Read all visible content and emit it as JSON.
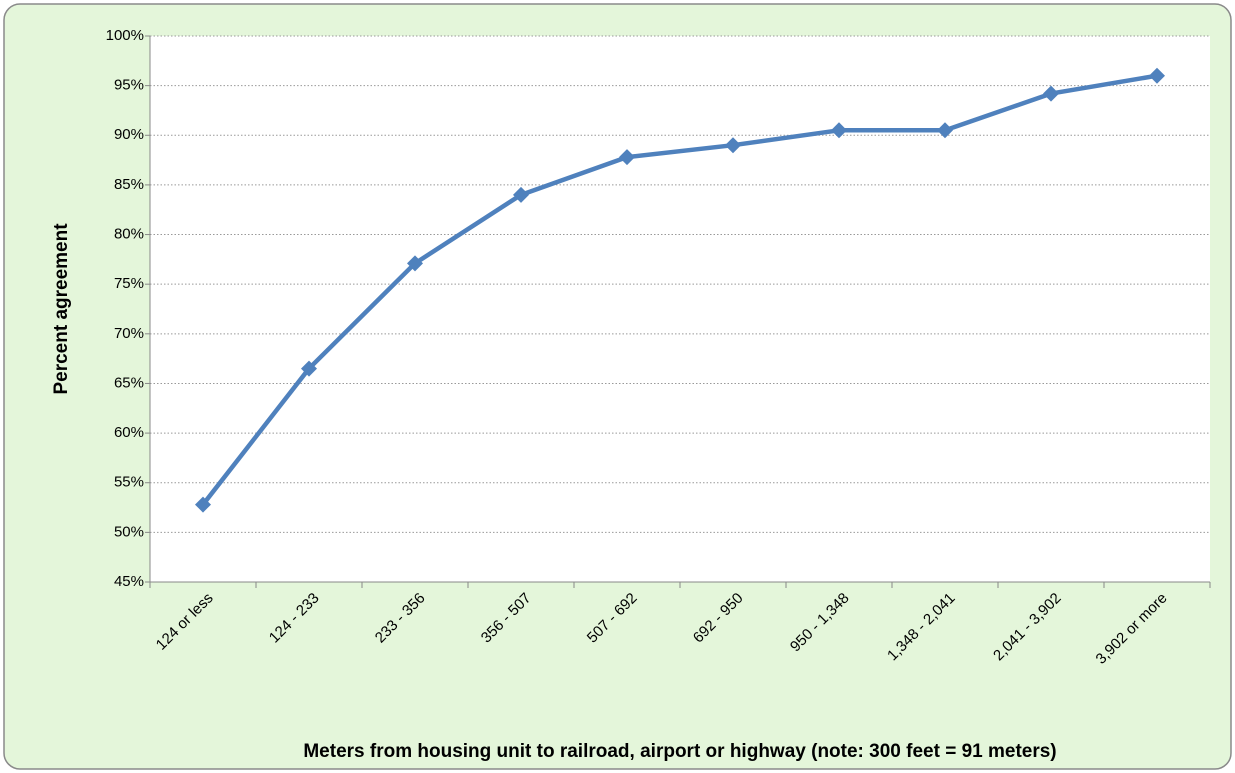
{
  "chart_data": {
    "type": "line",
    "categories": [
      "124 or less",
      "124 - 233",
      "233 - 356",
      "356 - 507",
      "507 - 692",
      "692 - 950",
      "950 - 1,348",
      "1,348 - 2,041",
      "2,041 - 3,902",
      "3,902 or more"
    ],
    "values": [
      52.8,
      66.5,
      77.1,
      84.0,
      87.8,
      89.0,
      90.5,
      90.5,
      94.2,
      96.0
    ],
    "color": "#4f81bd",
    "ylim": [
      45,
      100
    ],
    "yticks": [
      {
        "value": 45,
        "label": "45%"
      },
      {
        "value": 50,
        "label": "50%"
      },
      {
        "value": 55,
        "label": "55%"
      },
      {
        "value": 60,
        "label": "60%"
      },
      {
        "value": 65,
        "label": "65%"
      },
      {
        "value": 70,
        "label": "70%"
      },
      {
        "value": 75,
        "label": "75%"
      },
      {
        "value": 80,
        "label": "80%"
      },
      {
        "value": 85,
        "label": "85%"
      },
      {
        "value": 90,
        "label": "90%"
      },
      {
        "value": 95,
        "label": "95%"
      },
      {
        "value": 100,
        "label": "100%"
      }
    ],
    "grid": true,
    "x_label": "Meters  from housing unit to railroad, airport or highway (note: 300 feet = 91 meters)",
    "y_label": "Percent agreement"
  }
}
